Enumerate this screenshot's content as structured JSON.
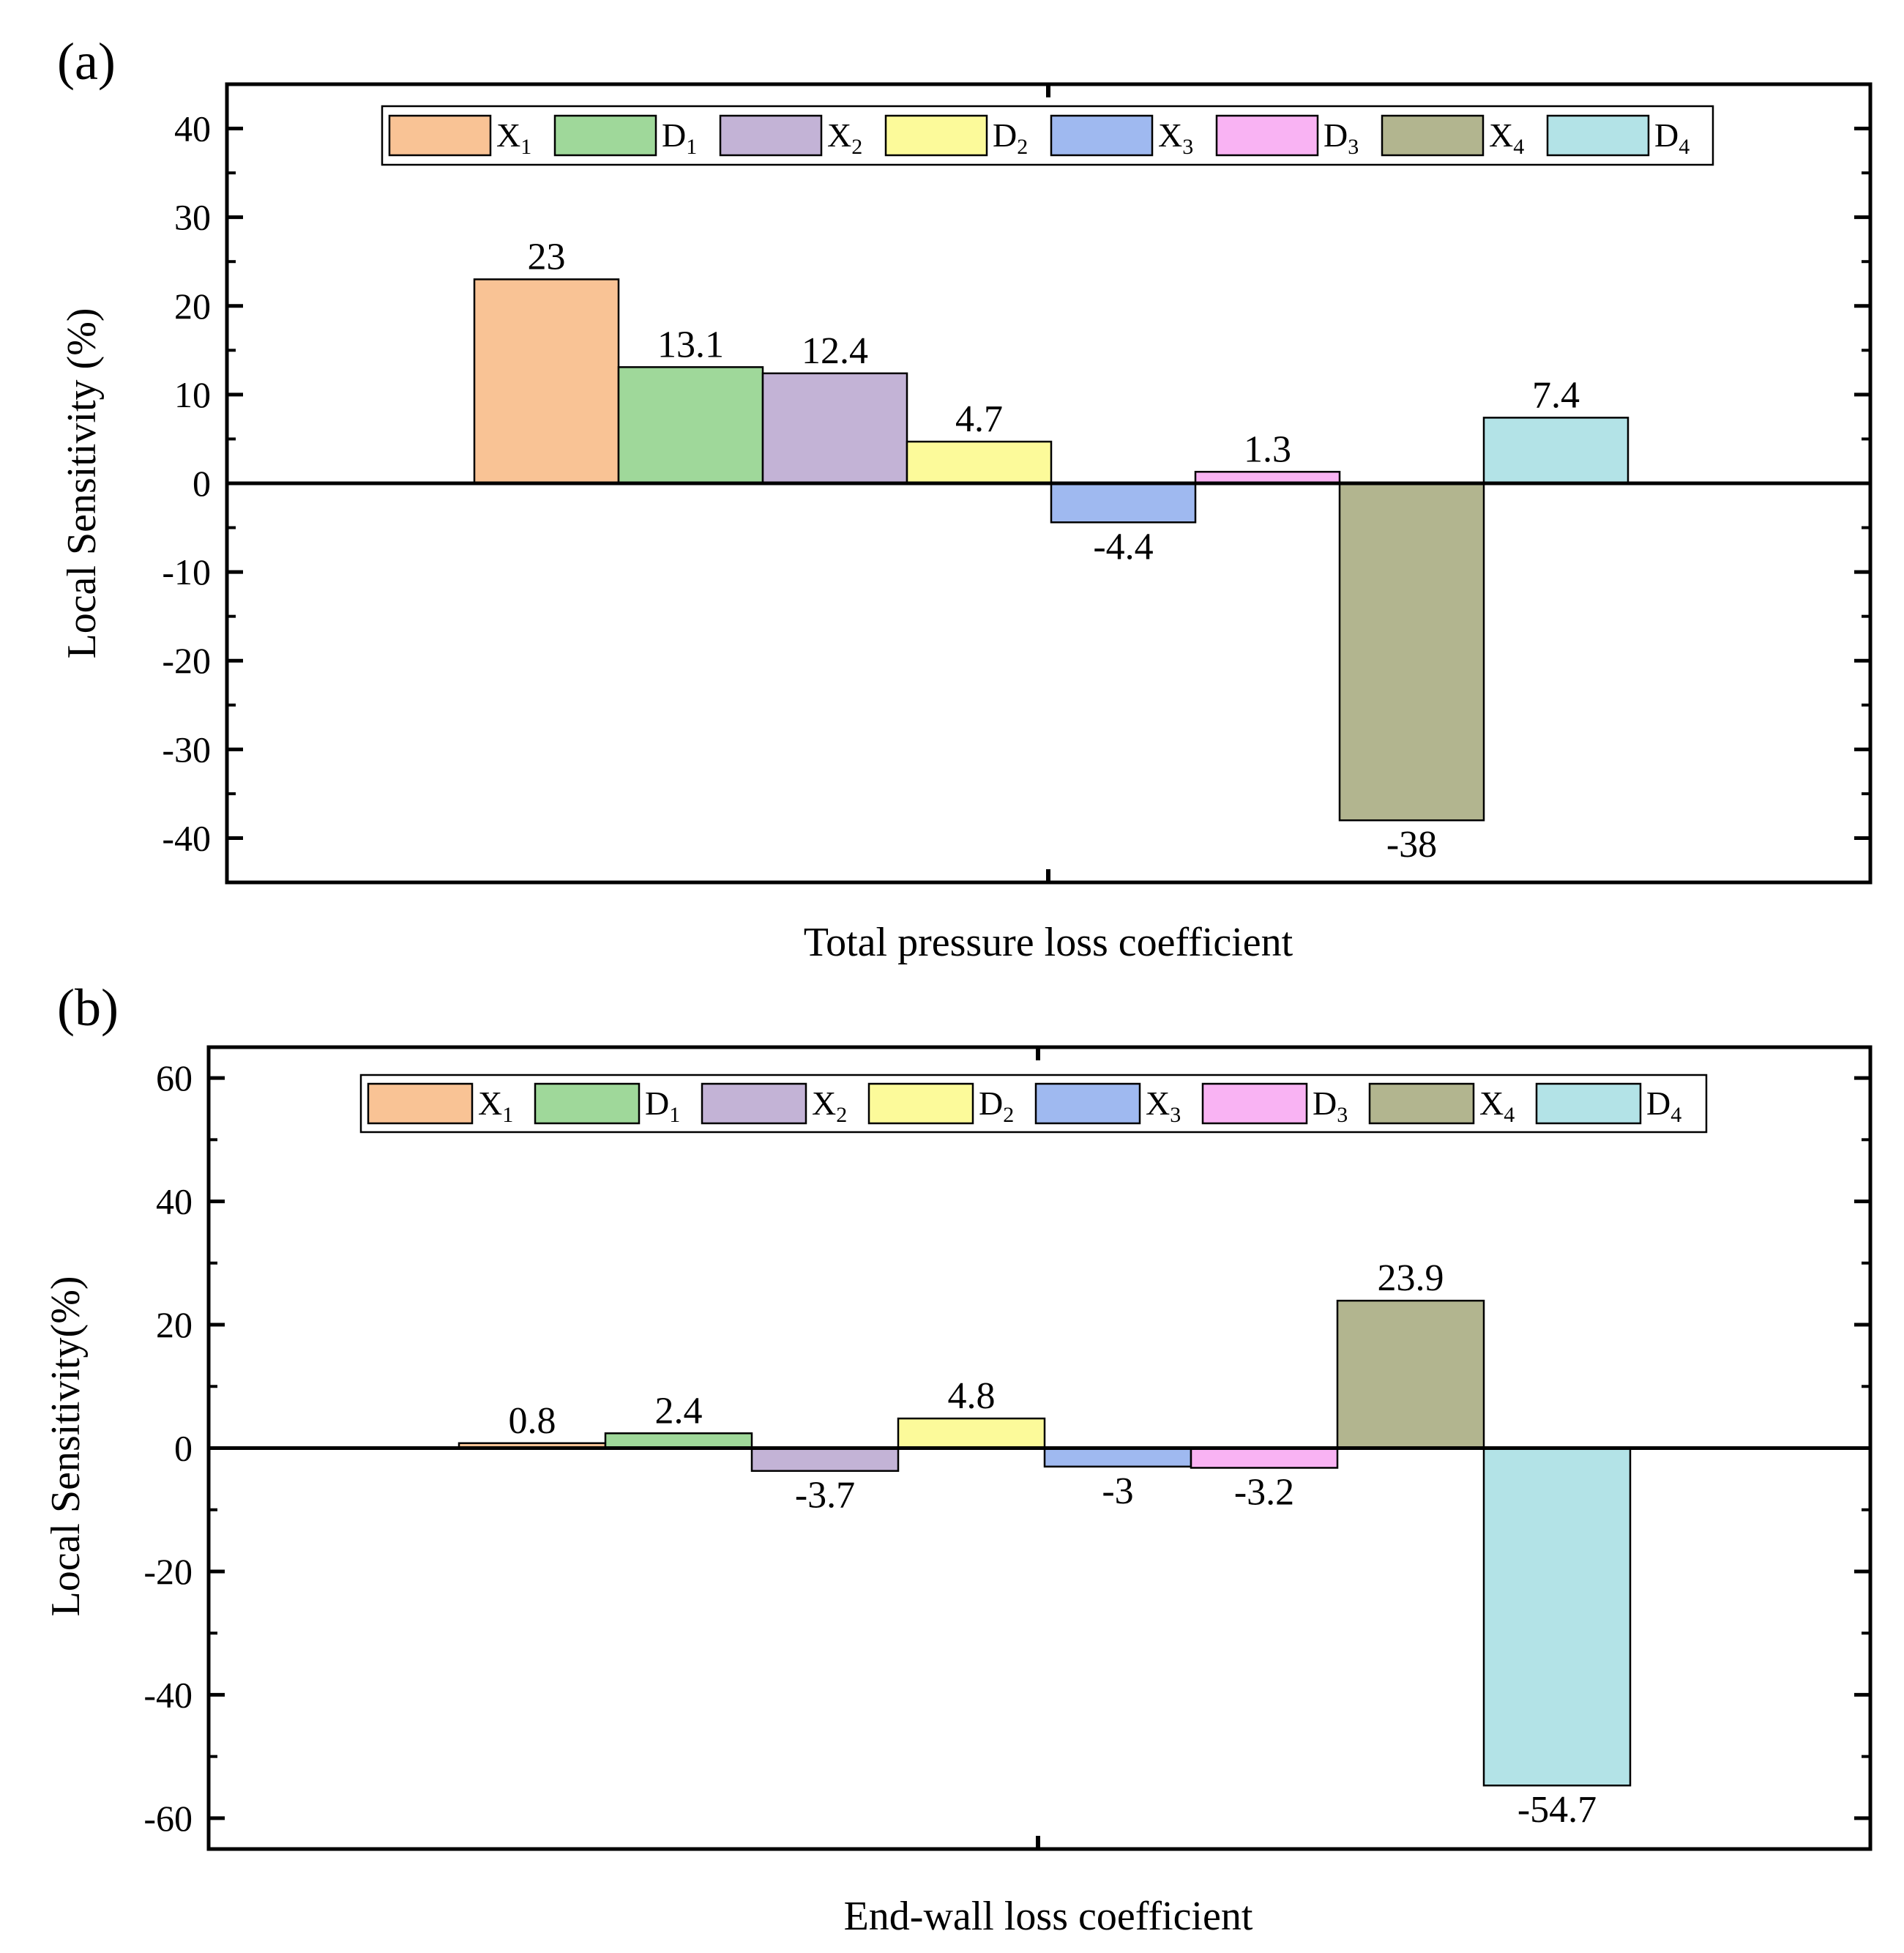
{
  "chart_data": [
    {
      "type": "bar",
      "panel_label": "(a)",
      "title": "",
      "xlabel": "Total pressure loss coefficient",
      "ylabel": "Local Sensitivity (%)",
      "ylim": [
        -45,
        45
      ],
      "yticks": [
        40,
        30,
        20,
        10,
        0,
        -10,
        -20,
        -30,
        -40
      ],
      "ytick_labels": [
        "40",
        "30",
        "20",
        "10",
        "0",
        "-10",
        "-20",
        "-30",
        "-40"
      ],
      "categories": [
        "X1",
        "D1",
        "X2",
        "D2",
        "X3",
        "D3",
        "X4",
        "D4"
      ],
      "values": [
        23,
        13.1,
        12.4,
        4.7,
        -4.4,
        1.3,
        -38,
        7.4
      ],
      "value_labels": [
        "23",
        "13.1",
        "12.4",
        "4.7",
        "-4.4",
        "1.3",
        "-38",
        "7.4"
      ],
      "legend": [
        {
          "main": "X",
          "sub": "1",
          "color": "#f9c395"
        },
        {
          "main": "D",
          "sub": "1",
          "color": "#9fd89a"
        },
        {
          "main": "X",
          "sub": "2",
          "color": "#c3b3d6"
        },
        {
          "main": "D",
          "sub": "2",
          "color": "#fcfa9a"
        },
        {
          "main": "X",
          "sub": "3",
          "color": "#9fb9f0"
        },
        {
          "main": "D",
          "sub": "3",
          "color": "#f9b3f3"
        },
        {
          "main": "X",
          "sub": "4",
          "color": "#b2b58f"
        },
        {
          "main": "D",
          "sub": "4",
          "color": "#b3e3e7"
        }
      ],
      "legend_position": "top-center"
    },
    {
      "type": "bar",
      "panel_label": "(b)",
      "title": "",
      "xlabel": "End-wall loss coefficient",
      "ylabel": "Local Sensitivity(%)",
      "ylim": [
        -65,
        65
      ],
      "yticks": [
        60,
        40,
        20,
        0,
        -20,
        -40,
        -60
      ],
      "ytick_labels": [
        "60",
        "40",
        "20",
        "0",
        "-20",
        "-40",
        "-60"
      ],
      "categories": [
        "X1",
        "D1",
        "X2",
        "D2",
        "X3",
        "D3",
        "X4",
        "D4"
      ],
      "values": [
        0.8,
        2.4,
        -3.7,
        4.8,
        -3,
        -3.2,
        23.9,
        -54.7
      ],
      "value_labels": [
        "0.8",
        "2.4",
        "-3.7",
        "4.8",
        "-3",
        "-3.2",
        "23.9",
        "-54.7"
      ],
      "legend": [
        {
          "main": "X",
          "sub": "1",
          "color": "#f9c395"
        },
        {
          "main": "D",
          "sub": "1",
          "color": "#9fd89a"
        },
        {
          "main": "X",
          "sub": "2",
          "color": "#c3b3d6"
        },
        {
          "main": "D",
          "sub": "2",
          "color": "#fcfa9a"
        },
        {
          "main": "X",
          "sub": "3",
          "color": "#9fb9f0"
        },
        {
          "main": "D",
          "sub": "3",
          "color": "#f9b3f3"
        },
        {
          "main": "X",
          "sub": "4",
          "color": "#b2b58f"
        },
        {
          "main": "D",
          "sub": "4",
          "color": "#b3e3e7"
        }
      ],
      "legend_position": "top-center"
    }
  ]
}
